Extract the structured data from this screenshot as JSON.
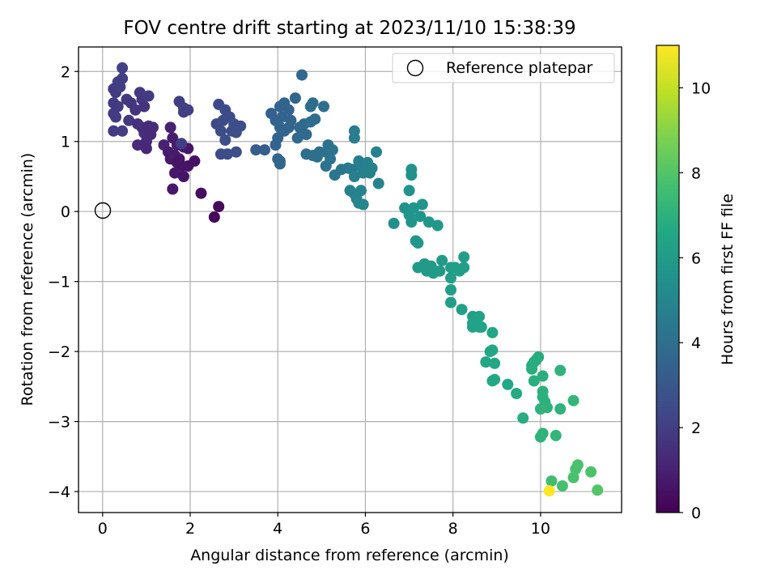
{
  "chart_data": {
    "type": "scatter",
    "title": "FOV centre drift starting at 2023/11/10 15:38:39",
    "xlabel": "Angular distance from reference (arcmin)",
    "ylabel": "Rotation from reference (arcmin)",
    "xlim": [
      -0.55,
      11.85
    ],
    "ylim": [
      -4.3,
      2.35
    ],
    "xticks": [
      0,
      2,
      4,
      6,
      8,
      10
    ],
    "yticks": [
      2,
      1,
      0,
      -1,
      -2,
      -3,
      -4
    ],
    "xtick_labels": [
      "0",
      "2",
      "4",
      "6",
      "8",
      "10"
    ],
    "ytick_labels": [
      "2",
      "1",
      "0",
      "−1",
      "−2",
      "−3",
      "−4"
    ],
    "grid": true,
    "legend": {
      "position": "top-right",
      "entries": [
        "Reference platepar"
      ]
    },
    "reference_point": {
      "x": 0,
      "y": 0,
      "label": "Reference platepar"
    },
    "colorbar": {
      "label": "Hours from first FF file",
      "range": [
        0,
        11
      ],
      "ticks": [
        0,
        2,
        4,
        6,
        8,
        10
      ],
      "tick_labels": [
        "0",
        "2",
        "4",
        "6",
        "8",
        "10"
      ],
      "colormap": "viridis"
    },
    "points": [
      [
        0.25,
        1.75,
        1.9
      ],
      [
        0.3,
        1.7,
        1.9
      ],
      [
        0.4,
        1.78,
        2.0
      ],
      [
        0.45,
        2.05,
        2.1
      ],
      [
        0.45,
        1.9,
        2.1
      ],
      [
        0.35,
        1.85,
        2.0
      ],
      [
        0.25,
        1.55,
        1.9
      ],
      [
        0.35,
        1.5,
        1.9
      ],
      [
        0.25,
        1.4,
        1.9
      ],
      [
        0.3,
        1.35,
        1.9
      ],
      [
        0.25,
        1.15,
        1.9
      ],
      [
        0.45,
        1.15,
        2.0
      ],
      [
        0.55,
        1.6,
        1.8
      ],
      [
        0.6,
        1.3,
        1.8
      ],
      [
        0.65,
        1.55,
        1.7
      ],
      [
        0.75,
        1.45,
        1.7
      ],
      [
        0.85,
        1.7,
        1.8
      ],
      [
        0.9,
        1.6,
        1.8
      ],
      [
        1.05,
        1.65,
        1.9
      ],
      [
        0.95,
        1.5,
        1.6
      ],
      [
        0.8,
        1.25,
        1.5
      ],
      [
        0.9,
        1.2,
        1.5
      ],
      [
        1.05,
        1.22,
        1.4
      ],
      [
        1.15,
        1.2,
        1.4
      ],
      [
        0.95,
        1.12,
        1.4
      ],
      [
        1.1,
        1.1,
        1.3
      ],
      [
        1.0,
        1.0,
        1.3
      ],
      [
        0.8,
        0.95,
        1.3
      ],
      [
        1.0,
        0.9,
        1.2
      ],
      [
        1.55,
        1.2,
        1.0
      ],
      [
        1.4,
        0.95,
        1.0
      ],
      [
        1.5,
        0.85,
        0.9
      ],
      [
        1.6,
        1.05,
        0.9
      ],
      [
        1.7,
        0.95,
        0.9
      ],
      [
        1.85,
        0.92,
        0.8
      ],
      [
        1.95,
        0.9,
        0.7
      ],
      [
        1.65,
        0.8,
        0.8
      ],
      [
        1.75,
        0.75,
        0.7
      ],
      [
        1.55,
        0.75,
        0.8
      ],
      [
        1.7,
        0.7,
        0.6
      ],
      [
        1.8,
        0.65,
        0.6
      ],
      [
        1.95,
        0.65,
        0.6
      ],
      [
        2.1,
        0.72,
        0.5
      ],
      [
        1.65,
        0.55,
        0.7
      ],
      [
        1.85,
        0.5,
        0.6
      ],
      [
        1.6,
        0.32,
        0.7
      ],
      [
        2.25,
        0.26,
        0.4
      ],
      [
        2.65,
        0.07,
        0.2
      ],
      [
        2.55,
        -0.08,
        0.2
      ],
      [
        1.75,
        1.57,
        2.0
      ],
      [
        1.85,
        1.42,
        2.0
      ],
      [
        1.95,
        1.45,
        2.0
      ],
      [
        1.85,
        1.48,
        2.1
      ],
      [
        1.8,
        0.97,
        2.0
      ],
      [
        2.65,
        1.53,
        2.4
      ],
      [
        2.8,
        1.45,
        2.5
      ],
      [
        2.9,
        1.35,
        2.5
      ],
      [
        2.6,
        1.25,
        2.4
      ],
      [
        2.75,
        1.3,
        2.5
      ],
      [
        3.0,
        1.25,
        2.6
      ],
      [
        2.7,
        1.15,
        2.5
      ],
      [
        2.95,
        1.15,
        2.6
      ],
      [
        3.15,
        1.22,
        2.6
      ],
      [
        3.05,
        1.13,
        2.6
      ],
      [
        2.8,
        1.02,
        2.6
      ],
      [
        2.7,
        0.82,
        2.5
      ],
      [
        2.85,
        0.82,
        2.6
      ],
      [
        3.05,
        0.85,
        2.6
      ],
      [
        3.5,
        0.88,
        3.2
      ],
      [
        3.7,
        0.88,
        3.2
      ],
      [
        3.85,
        1.4,
        3.4
      ],
      [
        3.95,
        1.3,
        3.4
      ],
      [
        4.05,
        1.5,
        3.5
      ],
      [
        4.15,
        1.55,
        3.5
      ],
      [
        4.25,
        1.45,
        3.5
      ],
      [
        4.4,
        1.62,
        3.6
      ],
      [
        4.55,
        1.95,
        3.7
      ],
      [
        4.1,
        1.35,
        3.5
      ],
      [
        4.3,
        1.3,
        3.5
      ],
      [
        4.05,
        1.2,
        3.5
      ],
      [
        4.15,
        1.15,
        3.5
      ],
      [
        4.25,
        1.2,
        3.5
      ],
      [
        4.5,
        1.2,
        3.7
      ],
      [
        4.6,
        1.25,
        3.7
      ],
      [
        4.45,
        1.05,
        3.7
      ],
      [
        4.0,
        1.05,
        3.5
      ],
      [
        3.95,
        0.95,
        3.5
      ],
      [
        4.05,
        0.72,
        3.5
      ],
      [
        4.05,
        0.68,
        3.6
      ],
      [
        4.0,
        0.75,
        3.6
      ],
      [
        4.65,
        1.1,
        3.8
      ],
      [
        4.75,
        1.5,
        3.9
      ],
      [
        4.8,
        1.55,
        3.9
      ],
      [
        4.85,
        1.32,
        3.9
      ],
      [
        4.75,
        1.28,
        3.9
      ],
      [
        5.05,
        1.5,
        4.0
      ],
      [
        4.65,
        0.82,
        3.9
      ],
      [
        4.8,
        0.8,
        4.0
      ],
      [
        4.9,
        0.78,
        4.0
      ],
      [
        4.95,
        0.85,
        4.0
      ],
      [
        5.1,
        0.85,
        4.1
      ],
      [
        5.15,
        0.95,
        4.1
      ],
      [
        5.25,
        0.88,
        4.2
      ],
      [
        5.2,
        0.75,
        4.2
      ],
      [
        5.1,
        0.65,
        4.2
      ],
      [
        5.3,
        0.52,
        4.3
      ],
      [
        5.45,
        0.6,
        4.3
      ],
      [
        5.6,
        0.62,
        4.4
      ],
      [
        5.7,
        0.6,
        4.5
      ],
      [
        5.75,
        1.05,
        4.6
      ],
      [
        5.75,
        1.15,
        4.6
      ],
      [
        5.85,
        0.72,
        4.6
      ],
      [
        5.9,
        0.65,
        4.6
      ],
      [
        5.75,
        0.5,
        4.7
      ],
      [
        5.95,
        0.55,
        4.7
      ],
      [
        6.05,
        0.7,
        4.8
      ],
      [
        6.15,
        0.62,
        4.8
      ],
      [
        6.1,
        0.55,
        4.8
      ],
      [
        6.25,
        0.85,
        4.9
      ],
      [
        6.3,
        0.4,
        4.9
      ],
      [
        5.65,
        0.3,
        4.8
      ],
      [
        5.75,
        0.25,
        4.8
      ],
      [
        5.9,
        0.3,
        4.9
      ],
      [
        5.8,
        0.18,
        4.9
      ],
      [
        5.85,
        0.12,
        5.0
      ],
      [
        5.95,
        0.1,
        5.0
      ],
      [
        6.65,
        -0.17,
        5.4
      ],
      [
        6.9,
        0.05,
        5.6
      ],
      [
        7.0,
        0.3,
        5.6
      ],
      [
        7.05,
        0.6,
        5.6
      ],
      [
        7.05,
        0.52,
        5.6
      ],
      [
        7.1,
        0.05,
        5.7
      ],
      [
        7.25,
        -0.07,
        5.7
      ],
      [
        7.0,
        -0.05,
        5.7
      ],
      [
        7.05,
        -0.15,
        5.7
      ],
      [
        7.3,
        0.1,
        5.7
      ],
      [
        7.45,
        -0.15,
        5.8
      ],
      [
        7.65,
        -0.2,
        5.8
      ],
      [
        7.15,
        -0.42,
        5.8
      ],
      [
        7.2,
        -0.45,
        5.8
      ],
      [
        7.2,
        -0.8,
        6.0
      ],
      [
        7.35,
        -0.75,
        6.0
      ],
      [
        7.4,
        -0.85,
        6.0
      ],
      [
        7.5,
        -0.78,
        6.0
      ],
      [
        7.55,
        -0.88,
        6.0
      ],
      [
        7.7,
        -0.85,
        6.0
      ],
      [
        7.75,
        -0.7,
        6.0
      ],
      [
        7.95,
        -0.8,
        6.1
      ],
      [
        7.95,
        -0.95,
        6.1
      ],
      [
        8.05,
        -0.8,
        6.1
      ],
      [
        8.15,
        -0.85,
        6.1
      ],
      [
        8.25,
        -0.65,
        6.1
      ],
      [
        8.25,
        -0.8,
        6.1
      ],
      [
        7.95,
        -1.12,
        6.1
      ],
      [
        7.95,
        -1.3,
        6.1
      ],
      [
        8.2,
        -1.4,
        6.2
      ],
      [
        8.45,
        -1.5,
        6.2
      ],
      [
        8.6,
        -1.5,
        6.3
      ],
      [
        8.45,
        -1.6,
        6.3
      ],
      [
        8.55,
        -1.6,
        6.3
      ],
      [
        8.45,
        -1.65,
        6.3
      ],
      [
        8.6,
        -1.65,
        6.3
      ],
      [
        8.65,
        -1.65,
        6.4
      ],
      [
        8.9,
        -1.73,
        6.5
      ],
      [
        8.85,
        -2.0,
        6.5
      ],
      [
        8.9,
        -1.98,
        6.5
      ],
      [
        8.75,
        -2.15,
        6.5
      ],
      [
        8.95,
        -2.17,
        6.6
      ],
      [
        8.95,
        -2.4,
        6.6
      ],
      [
        8.9,
        -2.42,
        6.6
      ],
      [
        9.25,
        -2.47,
        6.6
      ],
      [
        9.45,
        -2.6,
        6.7
      ],
      [
        9.6,
        -2.95,
        6.8
      ],
      [
        9.8,
        -2.2,
        6.8
      ],
      [
        9.85,
        -2.15,
        6.8
      ],
      [
        9.95,
        -2.08,
        6.8
      ],
      [
        9.9,
        -2.12,
        6.8
      ],
      [
        9.8,
        -2.25,
        6.8
      ],
      [
        10.05,
        -2.35,
        6.9
      ],
      [
        9.85,
        -2.42,
        6.9
      ],
      [
        10.05,
        -2.57,
        7.0
      ],
      [
        10.05,
        -2.65,
        7.0
      ],
      [
        10.1,
        -2.72,
        7.0
      ],
      [
        10.15,
        -2.8,
        7.0
      ],
      [
        10.45,
        -2.27,
        7.1
      ],
      [
        10.0,
        -2.82,
        7.1
      ],
      [
        10.45,
        -2.82,
        7.1
      ],
      [
        10.75,
        -2.7,
        7.2
      ],
      [
        10.35,
        -3.2,
        7.2
      ],
      [
        10.05,
        -3.17,
        7.1
      ],
      [
        10.0,
        -3.22,
        7.1
      ],
      [
        10.25,
        -3.85,
        7.6
      ],
      [
        10.5,
        -3.92,
        7.7
      ],
      [
        10.75,
        -3.8,
        7.8
      ],
      [
        10.8,
        -3.68,
        7.8
      ],
      [
        10.85,
        -3.62,
        7.8
      ],
      [
        11.15,
        -3.72,
        7.9
      ],
      [
        11.3,
        -3.98,
        8.0
      ],
      [
        10.2,
        -3.99,
        11.0
      ]
    ]
  }
}
